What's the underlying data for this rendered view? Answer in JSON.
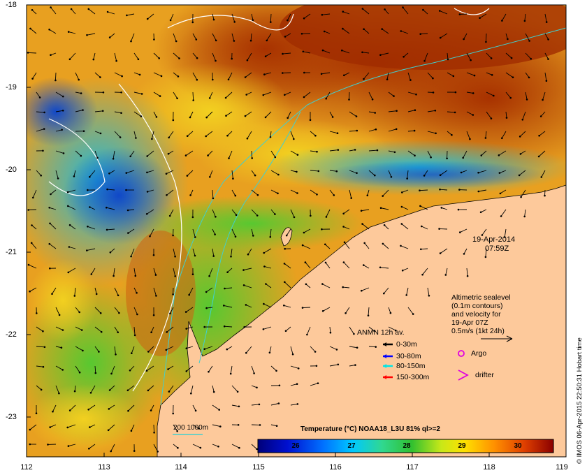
{
  "map": {
    "y_ticks": [
      "-18",
      "-19",
      "-20",
      "-21",
      "-22",
      "-23"
    ],
    "x_ticks": [
      "112",
      "113",
      "114",
      "115",
      "116",
      "117",
      "118",
      "119"
    ],
    "date_label": "19-Apr-2014",
    "time_label": "07:59Z",
    "sealevel_note": [
      "Altimetric sealevel",
      "(0.1m contours)",
      "and velocity for",
      "19-Apr 07Z",
      "0.5m/s (1kt 24h)"
    ],
    "anmn_title": "ANMN 12h av.",
    "anmn_items": [
      {
        "label": "0-30m",
        "color": "#000000"
      },
      {
        "label": "30-80m",
        "color": "#0000ff"
      },
      {
        "label": "80-150m",
        "color": "#00e5e5"
      },
      {
        "label": "150-300m",
        "color": "#ff0000"
      }
    ],
    "argo_label": "Argo",
    "drifter_label": "drifter",
    "bathy_label": "200  1000m",
    "colorbar_title": "Temperature (°C) NOAA18_L3U 81% ql>=2",
    "colorbar_ticks": [
      "26",
      "27",
      "28",
      "29",
      "30"
    ],
    "credit": "© IMOS 06-Apr-2015 22:50:31 Hobart time",
    "colors": {
      "land": "#fdc99b",
      "argo": "#e000e0",
      "drifter": "#e000e0",
      "bathy": "#40d0d0"
    }
  }
}
